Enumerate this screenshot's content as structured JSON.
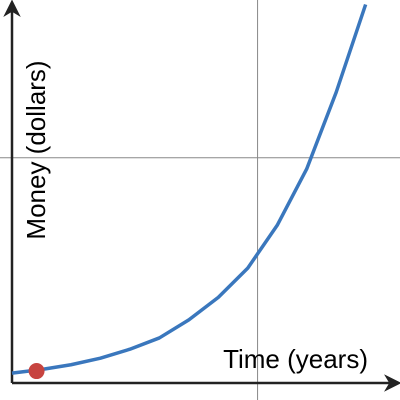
{
  "chart_data": {
    "type": "line",
    "x_label": "Time (years)",
    "y_label": "Money (dollars)",
    "xlim": [
      0,
      1.58
    ],
    "ylim": [
      0,
      1.7
    ],
    "xticks": [
      1
    ],
    "yticks": [
      1
    ],
    "grid": true,
    "series": [
      {
        "type": "line",
        "color": "#3a77bd",
        "x": [
          0,
          0.12,
          0.24,
          0.36,
          0.48,
          0.6,
          0.72,
          0.84,
          0.96,
          1.08,
          1.2,
          1.32,
          1.44
        ],
        "values": [
          0.044,
          0.06,
          0.081,
          0.11,
          0.15,
          0.2,
          0.28,
          0.38,
          0.51,
          0.7,
          0.95,
          1.29,
          1.68
        ]
      },
      {
        "type": "scatter",
        "color": "#c74440",
        "x": [
          0.1
        ],
        "values": [
          0.053
        ]
      }
    ]
  }
}
